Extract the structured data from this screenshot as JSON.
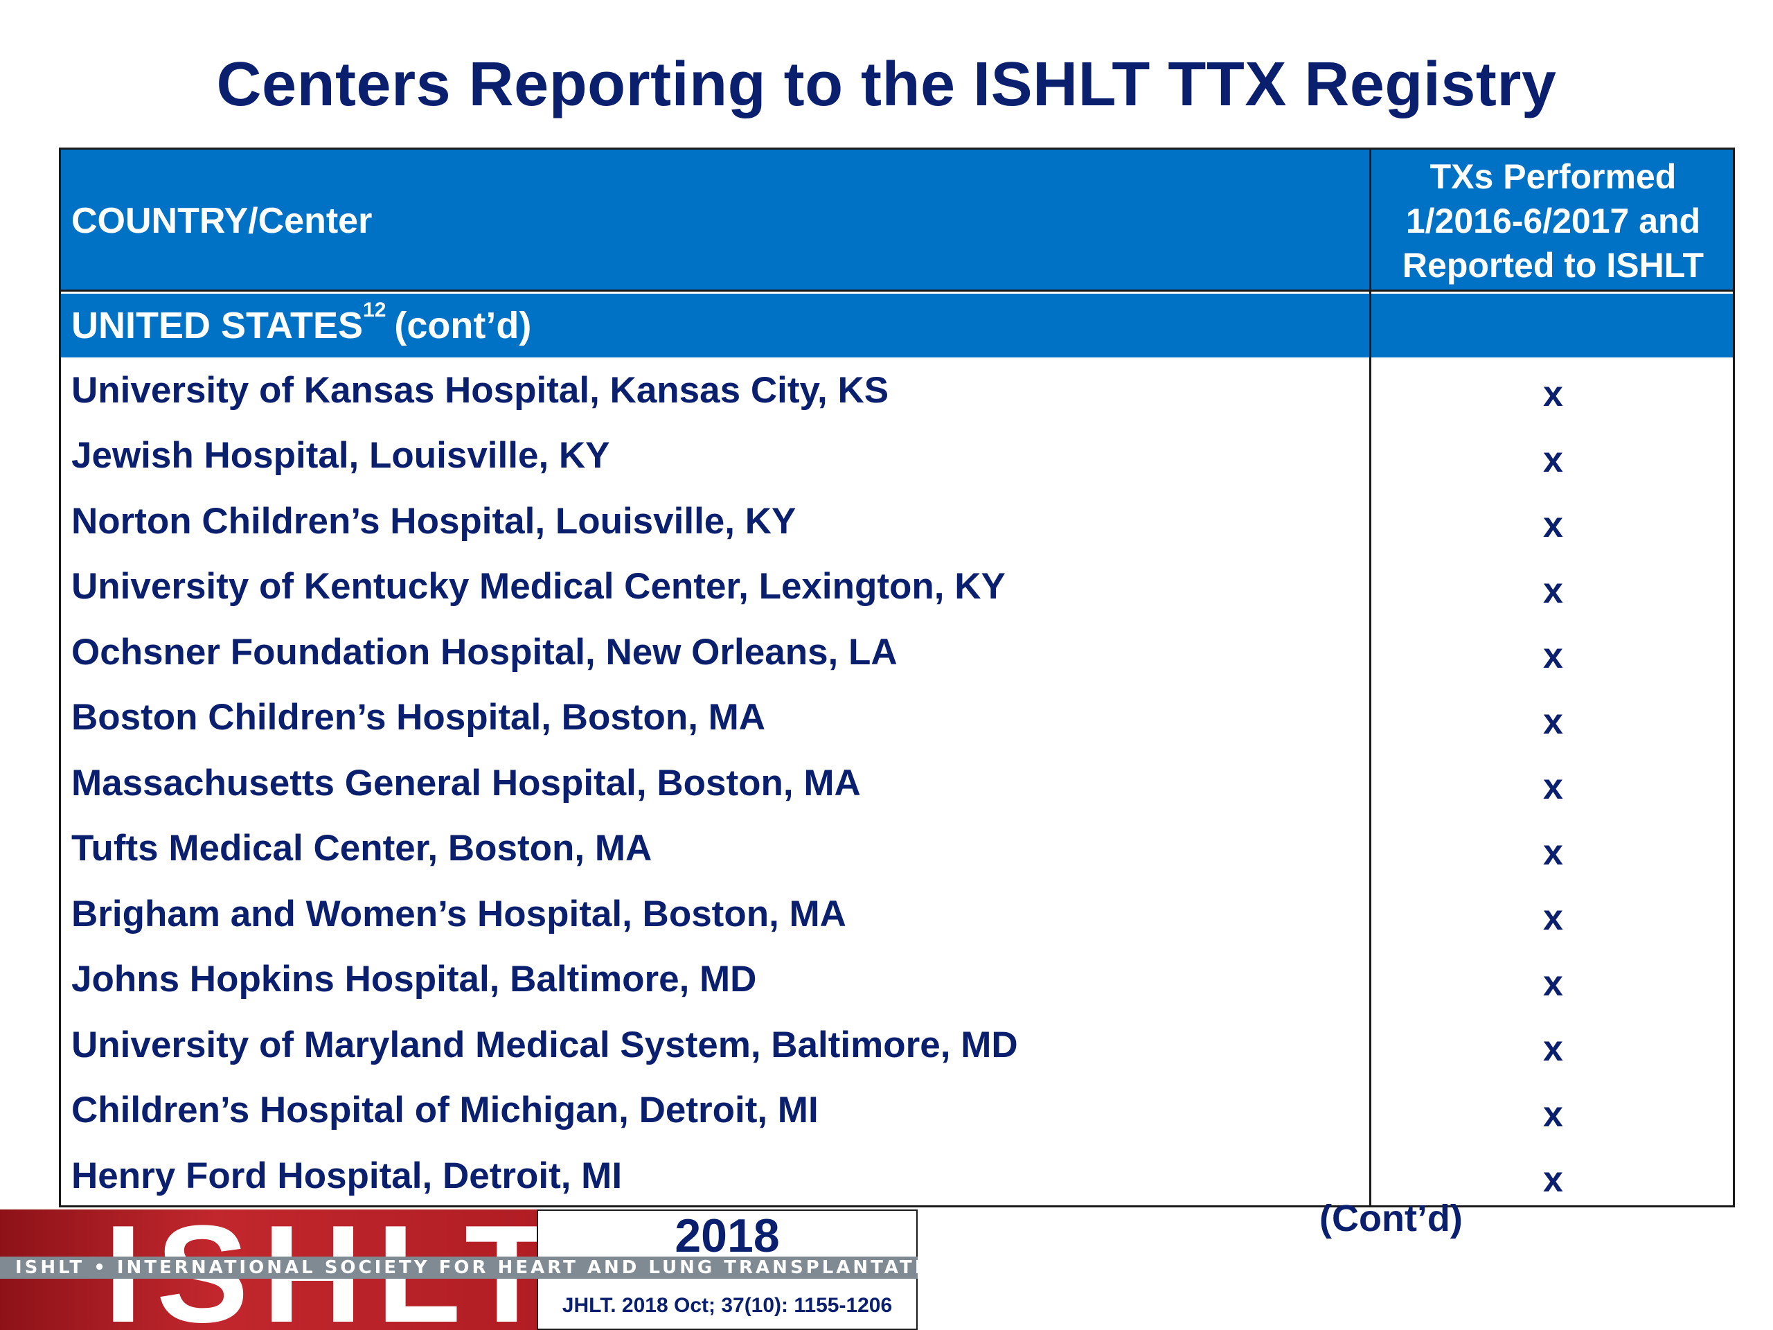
{
  "title": "Centers Reporting to the ISHLT TTX Registry",
  "table": {
    "header": {
      "left": "COUNTRY/Center",
      "right": "TXs Performed\n1/2016-6/2017 and\nReported to ISHLT"
    },
    "section": {
      "label": "UNITED STATES",
      "superscript": "12",
      "suffix": "(cont’d)"
    },
    "rows": [
      {
        "center": "University of Kansas Hospital, Kansas City, KS",
        "mark": "x"
      },
      {
        "center": "Jewish Hospital, Louisville, KY",
        "mark": "x"
      },
      {
        "center": "Norton Children’s Hospital, Louisville, KY",
        "mark": "x"
      },
      {
        "center": "University of Kentucky Medical Center, Lexington, KY",
        "mark": "x"
      },
      {
        "center": "Ochsner Foundation Hospital, New Orleans, LA",
        "mark": "x"
      },
      {
        "center": "Boston Children’s Hospital, Boston, MA",
        "mark": "x"
      },
      {
        "center": "Massachusetts General Hospital, Boston, MA",
        "mark": "x"
      },
      {
        "center": "Tufts Medical Center, Boston, MA",
        "mark": "x"
      },
      {
        "center": "Brigham and Women’s Hospital, Boston, MA",
        "mark": "x"
      },
      {
        "center": "Johns Hopkins Hospital, Baltimore, MD",
        "mark": "x"
      },
      {
        "center": "University of Maryland Medical System, Baltimore, MD",
        "mark": "x"
      },
      {
        "center": "Children’s Hospital of Michigan, Detroit, MI",
        "mark": "x"
      },
      {
        "center": "Henry Ford Hospital, Detroit, MI",
        "mark": "x"
      }
    ]
  },
  "continued": "(Cont’d)",
  "footer": {
    "logo_letters": "ISHLT",
    "society": "ISHLT • INTERNATIONAL SOCIETY FOR HEART AND LUNG TRANSPLANTATION",
    "year": "2018",
    "citation": "JHLT. 2018 Oct; 37(10): 1155-1206"
  },
  "colors": {
    "header_blue": "#0072c6",
    "text_navy": "#0a1f6e",
    "logo_red": "#c1272d",
    "logo_band_gray": "#7f8a93"
  }
}
